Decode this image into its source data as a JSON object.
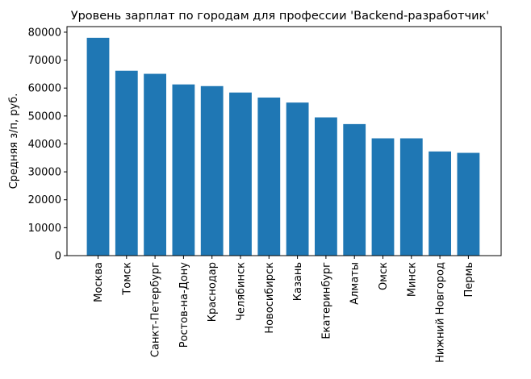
{
  "chart_data": {
    "type": "bar",
    "title": "Уровень зарплат по городам для профессии 'Backend-разработчик'",
    "xlabel": "",
    "ylabel": "Средняя з/п, руб.",
    "categories": [
      "Москва",
      "Томск",
      "Санкт-Петербург",
      "Ростов-на-Дону",
      "Краснодар",
      "Челябинск",
      "Новосибирск",
      "Казань",
      "Екатеринбург",
      "Алматы",
      "Омск",
      "Минск",
      "Нижний Новгород",
      "Пермь"
    ],
    "values": [
      78000,
      66200,
      65100,
      61300,
      60700,
      58400,
      56600,
      54800,
      49500,
      47100,
      42000,
      42000,
      37300,
      36800
    ],
    "ylim": [
      0,
      82000
    ],
    "yticks": [
      0,
      10000,
      20000,
      30000,
      40000,
      50000,
      60000,
      70000,
      80000
    ],
    "bar_color": "#1f77b4",
    "grid": false,
    "legend": "none"
  }
}
